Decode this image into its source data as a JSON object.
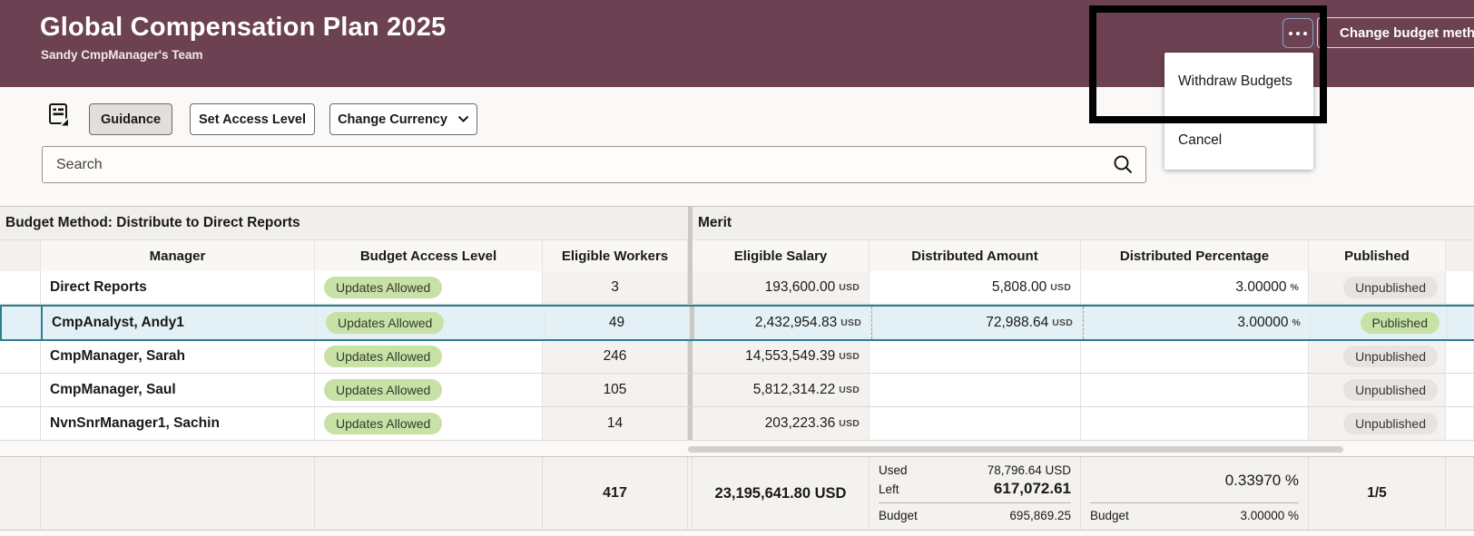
{
  "header": {
    "title": "Global Compensation Plan 2025",
    "subtitle": "Sandy CmpManager's Team",
    "change_budget_button": "Change budget method",
    "more_actions_icon": "ellipsis-icon"
  },
  "menu": {
    "items": [
      "Withdraw Budgets",
      "Cancel"
    ]
  },
  "toolbar": {
    "guidance_label": "Guidance",
    "set_access_level_label": "Set Access Level",
    "change_currency_label": "Change Currency",
    "guidance_panel_icon": "guidance-panel-icon",
    "chevron_icon": "chevron-down-icon"
  },
  "search": {
    "placeholder": "Search",
    "icon": "search-icon"
  },
  "table": {
    "left_section_title": "Budget Method: Distribute to Direct Reports",
    "right_section_title": "Merit",
    "columns": [
      "Manager",
      "Budget Access Level",
      "Eligible Workers",
      "Eligible Salary",
      "Distributed Amount",
      "Distributed Percentage",
      "Published"
    ],
    "rows": [
      {
        "manager": "Direct Reports",
        "access": "Updates Allowed",
        "workers": "3",
        "salary": "193,600.00",
        "salary_unit": "USD",
        "amount": "5,808.00",
        "amount_unit": "USD",
        "pct": "3.00000",
        "pct_unit": "%",
        "published": "Unpublished",
        "published_state": "unpublished",
        "selected": false
      },
      {
        "manager": "CmpAnalyst, Andy1",
        "access": "Updates Allowed",
        "workers": "49",
        "salary": "2,432,954.83",
        "salary_unit": "USD",
        "amount": "72,988.64",
        "amount_unit": "USD",
        "pct": "3.00000",
        "pct_unit": "%",
        "published": "Published",
        "published_state": "published",
        "selected": true
      },
      {
        "manager": "CmpManager, Sarah",
        "access": "Updates Allowed",
        "workers": "246",
        "salary": "14,553,549.39",
        "salary_unit": "USD",
        "amount": "",
        "amount_unit": "",
        "pct": "",
        "pct_unit": "",
        "published": "Unpublished",
        "published_state": "unpublished",
        "selected": false
      },
      {
        "manager": "CmpManager, Saul",
        "access": "Updates Allowed",
        "workers": "105",
        "salary": "5,812,314.22",
        "salary_unit": "USD",
        "amount": "",
        "amount_unit": "",
        "pct": "",
        "pct_unit": "",
        "published": "Unpublished",
        "published_state": "unpublished",
        "selected": false
      },
      {
        "manager": "NvnSnrManager1, Sachin",
        "access": "Updates Allowed",
        "workers": "14",
        "salary": "203,223.36",
        "salary_unit": "USD",
        "amount": "",
        "amount_unit": "",
        "pct": "",
        "pct_unit": "",
        "published": "Unpublished",
        "published_state": "unpublished",
        "selected": false
      }
    ],
    "summary": {
      "workers_total": "417",
      "salary_total": "23,195,641.80 USD",
      "amount": {
        "used_label": "Used",
        "used_value": "78,796.64 USD",
        "left_label": "Left",
        "left_value": "617,072.61",
        "budget_label": "Budget",
        "budget_value": "695,869.25"
      },
      "percentage": {
        "value": "0.33970 %",
        "budget_label": "Budget",
        "budget_value": "3.00000 %"
      },
      "published_count": "1/5"
    }
  },
  "colors": {
    "header_bg": "#6C4151",
    "sel_border": "#2C7E90",
    "sel_bg": "#E3F1F7",
    "badge_green": "#C7E1A7",
    "badge_gray": "#E6E4E1"
  }
}
